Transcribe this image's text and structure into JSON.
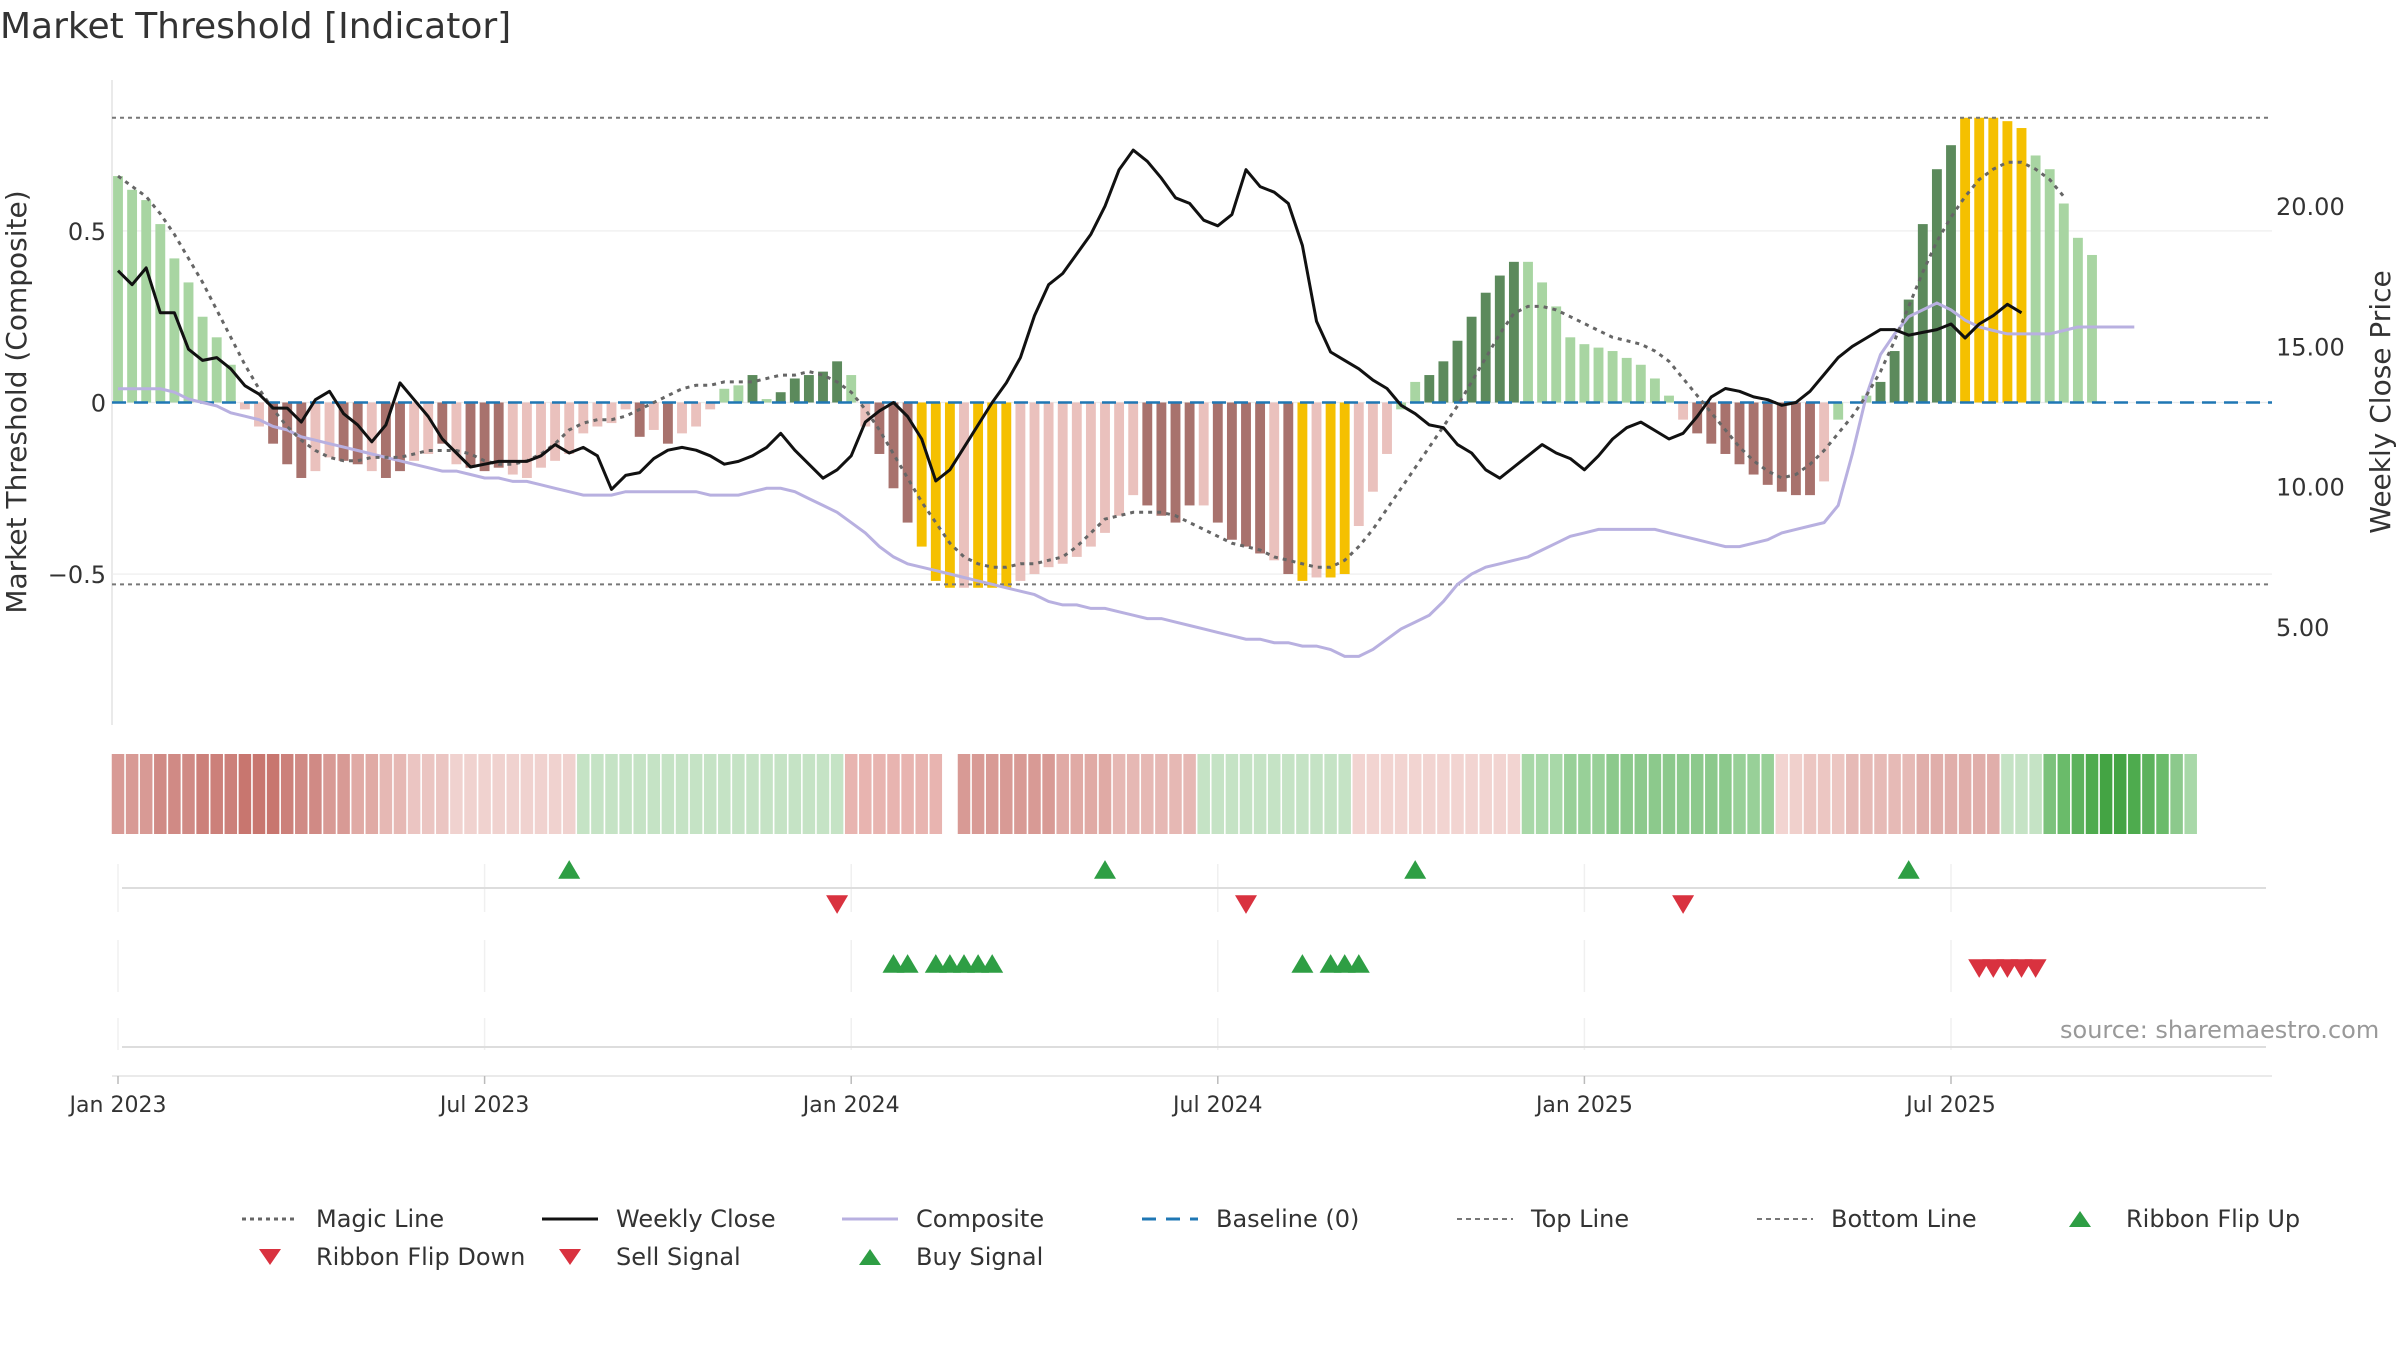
{
  "title": "Market Threshold [Indicator]",
  "source": "source: sharemaestro.com",
  "colors": {
    "pos_dark": "#5c8a5c",
    "pos_light": "#a8d5a2",
    "neg_dark": "#a8726d",
    "neg_light": "#eac1bd",
    "highlight": "#f5c000",
    "magic": "#666666",
    "close": "#111111",
    "composite": "#b8b0e0",
    "baseline": "#1f77b4",
    "threshold": "#777777",
    "buy": "#2e9e44",
    "sell": "#d9323f"
  },
  "chart_data": {
    "type": "bar",
    "left_axis": {
      "label": "Market Threshold (Composite)",
      "ticks": [
        "0.5",
        "0",
        "−0.5"
      ],
      "tick_values": [
        0.5,
        0,
        -0.5
      ],
      "ylim": [
        -0.94,
        0.94
      ]
    },
    "right_axis": {
      "label": "Weekly Close Price",
      "ticks": [
        "20.00",
        "15.00",
        "10.00",
        "5.00"
      ],
      "tick_values": [
        20,
        15,
        10,
        5
      ],
      "ylim": [
        1.5,
        24.5
      ]
    },
    "x_axis": {
      "ticks": [
        "Jan 2023",
        "Jul 2023",
        "Jan 2024",
        "Jul 2024",
        "Jan 2025",
        "Jul 2025"
      ],
      "tick_weeks": [
        0,
        26,
        52,
        78,
        104,
        130
      ],
      "range_weeks": [
        -1,
        140
      ]
    },
    "top_line": 0.83,
    "bottom_line": -0.53,
    "baseline": 0,
    "histogram_values": [
      0.66,
      0.62,
      0.59,
      0.52,
      0.42,
      0.35,
      0.25,
      0.19,
      0.11,
      -0.02,
      -0.07,
      -0.12,
      -0.18,
      -0.22,
      -0.2,
      -0.16,
      -0.17,
      -0.18,
      -0.2,
      -0.22,
      -0.2,
      -0.17,
      -0.15,
      -0.12,
      -0.18,
      -0.19,
      -0.2,
      -0.19,
      -0.21,
      -0.22,
      -0.19,
      -0.17,
      -0.15,
      -0.09,
      -0.07,
      -0.06,
      -0.02,
      -0.1,
      -0.08,
      -0.12,
      -0.09,
      -0.07,
      -0.02,
      0.04,
      0.05,
      0.08,
      0.01,
      0.03,
      0.07,
      0.08,
      0.09,
      0.12,
      0.08,
      -0.07,
      -0.15,
      -0.25,
      -0.35,
      -0.42,
      -0.52,
      -0.54,
      -0.54,
      -0.54,
      -0.54,
      -0.54,
      -0.52,
      -0.5,
      -0.48,
      -0.47,
      -0.45,
      -0.42,
      -0.38,
      -0.33,
      -0.27,
      -0.3,
      -0.33,
      -0.35,
      -0.3,
      -0.3,
      -0.35,
      -0.4,
      -0.42,
      -0.44,
      -0.46,
      -0.5,
      -0.52,
      -0.51,
      -0.51,
      -0.5,
      -0.36,
      -0.26,
      -0.15,
      -0.02,
      0.06,
      0.08,
      0.12,
      0.18,
      0.25,
      0.32,
      0.37,
      0.41,
      0.41,
      0.35,
      0.28,
      0.19,
      0.17,
      0.16,
      0.15,
      0.13,
      0.11,
      0.07,
      0.02,
      -0.05,
      -0.09,
      -0.12,
      -0.15,
      -0.18,
      -0.21,
      -0.24,
      -0.26,
      -0.27,
      -0.27,
      -0.23,
      -0.05,
      0.0,
      0.02,
      0.06,
      0.15,
      0.3,
      0.52,
      0.68,
      0.75,
      0.83,
      0.83,
      0.83,
      0.82,
      0.8,
      0.72,
      0.68,
      0.58,
      0.48,
      0.43
    ],
    "histogram_colors": [
      "pos_light",
      "pos_light",
      "pos_light",
      "pos_light",
      "pos_light",
      "pos_light",
      "pos_light",
      "pos_light",
      "pos_light",
      "neg_light",
      "neg_light",
      "neg_dark",
      "neg_dark",
      "neg_dark",
      "neg_light",
      "neg_light",
      "neg_dark",
      "neg_dark",
      "neg_light",
      "neg_dark",
      "neg_dark",
      "neg_light",
      "neg_light",
      "neg_dark",
      "neg_light",
      "neg_dark",
      "neg_dark",
      "neg_dark",
      "neg_light",
      "neg_light",
      "neg_light",
      "neg_light",
      "neg_light",
      "neg_light",
      "neg_light",
      "neg_light",
      "neg_light",
      "neg_dark",
      "neg_light",
      "neg_dark",
      "neg_light",
      "neg_light",
      "neg_light",
      "pos_light",
      "pos_light",
      "pos_dark",
      "pos_light",
      "pos_dark",
      "pos_dark",
      "pos_dark",
      "pos_dark",
      "pos_dark",
      "pos_light",
      "neg_light",
      "neg_dark",
      "neg_dark",
      "neg_dark",
      "highlight",
      "highlight",
      "highlight",
      "neg_light",
      "highlight",
      "highlight",
      "highlight",
      "neg_light",
      "neg_light",
      "neg_light",
      "neg_light",
      "neg_light",
      "neg_light",
      "neg_light",
      "neg_light",
      "neg_light",
      "neg_dark",
      "neg_dark",
      "neg_dark",
      "neg_dark",
      "neg_light",
      "neg_dark",
      "neg_dark",
      "neg_dark",
      "neg_dark",
      "neg_light",
      "neg_dark",
      "highlight",
      "neg_light",
      "highlight",
      "highlight",
      "neg_light",
      "neg_light",
      "neg_light",
      "pos_light",
      "pos_light",
      "pos_dark",
      "pos_dark",
      "pos_dark",
      "pos_dark",
      "pos_dark",
      "pos_dark",
      "pos_dark",
      "pos_light",
      "pos_light",
      "pos_light",
      "pos_light",
      "pos_light",
      "pos_light",
      "pos_light",
      "pos_light",
      "pos_light",
      "pos_light",
      "pos_light",
      "neg_light",
      "neg_dark",
      "neg_dark",
      "neg_dark",
      "neg_dark",
      "neg_dark",
      "neg_dark",
      "neg_dark",
      "neg_dark",
      "neg_dark",
      "neg_light",
      "pos_light",
      "pos_light",
      "pos_light",
      "pos_dark",
      "pos_dark",
      "pos_dark",
      "pos_dark",
      "pos_dark",
      "pos_dark",
      "highlight",
      "highlight",
      "highlight",
      "highlight",
      "highlight",
      "pos_light",
      "pos_light",
      "pos_light",
      "pos_light",
      "pos_light"
    ],
    "magic_line": [
      0.66,
      0.63,
      0.6,
      0.55,
      0.49,
      0.42,
      0.35,
      0.27,
      0.19,
      0.11,
      0.04,
      -0.02,
      -0.07,
      -0.11,
      -0.14,
      -0.16,
      -0.17,
      -0.17,
      -0.16,
      -0.16,
      -0.16,
      -0.15,
      -0.14,
      -0.14,
      -0.14,
      -0.15,
      -0.17,
      -0.18,
      -0.18,
      -0.17,
      -0.15,
      -0.12,
      -0.08,
      -0.06,
      -0.05,
      -0.05,
      -0.04,
      -0.02,
      0.0,
      0.02,
      0.04,
      0.05,
      0.05,
      0.06,
      0.06,
      0.06,
      0.07,
      0.08,
      0.08,
      0.09,
      0.08,
      0.06,
      0.03,
      -0.02,
      -0.08,
      -0.15,
      -0.22,
      -0.29,
      -0.35,
      -0.41,
      -0.45,
      -0.47,
      -0.48,
      -0.48,
      -0.47,
      -0.47,
      -0.46,
      -0.45,
      -0.42,
      -0.38,
      -0.34,
      -0.33,
      -0.32,
      -0.32,
      -0.32,
      -0.33,
      -0.35,
      -0.37,
      -0.39,
      -0.41,
      -0.42,
      -0.43,
      -0.45,
      -0.46,
      -0.47,
      -0.48,
      -0.48,
      -0.46,
      -0.42,
      -0.37,
      -0.31,
      -0.25,
      -0.19,
      -0.13,
      -0.07,
      -0.01,
      0.06,
      0.13,
      0.2,
      0.26,
      0.28,
      0.28,
      0.27,
      0.25,
      0.23,
      0.21,
      0.19,
      0.18,
      0.17,
      0.15,
      0.12,
      0.07,
      0.02,
      -0.03,
      -0.08,
      -0.13,
      -0.17,
      -0.2,
      -0.22,
      -0.21,
      -0.18,
      -0.14,
      -0.09,
      -0.04,
      0.02,
      0.09,
      0.18,
      0.28,
      0.38,
      0.47,
      0.54,
      0.6,
      0.65,
      0.68,
      0.7,
      0.7,
      0.68,
      0.65,
      0.6
    ],
    "composite": [
      0.04,
      0.04,
      0.04,
      0.04,
      0.03,
      0.01,
      0.0,
      -0.01,
      -0.03,
      -0.04,
      -0.05,
      -0.07,
      -0.08,
      -0.1,
      -0.11,
      -0.12,
      -0.13,
      -0.14,
      -0.15,
      -0.16,
      -0.17,
      -0.18,
      -0.19,
      -0.2,
      -0.2,
      -0.21,
      -0.22,
      -0.22,
      -0.23,
      -0.23,
      -0.24,
      -0.25,
      -0.26,
      -0.27,
      -0.27,
      -0.27,
      -0.26,
      -0.26,
      -0.26,
      -0.26,
      -0.26,
      -0.26,
      -0.27,
      -0.27,
      -0.27,
      -0.26,
      -0.25,
      -0.25,
      -0.26,
      -0.28,
      -0.3,
      -0.32,
      -0.35,
      -0.38,
      -0.42,
      -0.45,
      -0.47,
      -0.48,
      -0.49,
      -0.5,
      -0.51,
      -0.52,
      -0.53,
      -0.54,
      -0.55,
      -0.56,
      -0.58,
      -0.59,
      -0.59,
      -0.6,
      -0.6,
      -0.61,
      -0.62,
      -0.63,
      -0.63,
      -0.64,
      -0.65,
      -0.66,
      -0.67,
      -0.68,
      -0.69,
      -0.69,
      -0.7,
      -0.7,
      -0.71,
      -0.71,
      -0.72,
      -0.74,
      -0.74,
      -0.72,
      -0.69,
      -0.66,
      -0.64,
      -0.62,
      -0.58,
      -0.53,
      -0.5,
      -0.48,
      -0.47,
      -0.46,
      -0.45,
      -0.43,
      -0.41,
      -0.39,
      -0.38,
      -0.37,
      -0.37,
      -0.37,
      -0.37,
      -0.37,
      -0.38,
      -0.39,
      -0.4,
      -0.41,
      -0.42,
      -0.42,
      -0.41,
      -0.4,
      -0.38,
      -0.37,
      -0.36,
      -0.35,
      -0.3,
      -0.15,
      0.02,
      0.14,
      0.2,
      0.25,
      0.27,
      0.29,
      0.27,
      0.24,
      0.22,
      0.21,
      0.2,
      0.2,
      0.2,
      0.2,
      0.21,
      0.22,
      0.22,
      0.22,
      0.22,
      0.22
    ],
    "weekly_close": [
      17.7,
      17.2,
      17.8,
      16.2,
      16.2,
      14.9,
      14.5,
      14.6,
      14.2,
      13.6,
      13.3,
      12.8,
      12.8,
      12.3,
      13.1,
      13.4,
      12.6,
      12.2,
      11.6,
      12.2,
      13.7,
      13.1,
      12.5,
      11.7,
      11.2,
      10.7,
      10.8,
      10.9,
      10.9,
      10.9,
      11.1,
      11.5,
      11.2,
      11.4,
      11.1,
      9.9,
      10.4,
      10.5,
      11.0,
      11.3,
      11.4,
      11.3,
      11.1,
      10.8,
      10.9,
      11.1,
      11.4,
      11.9,
      11.3,
      10.8,
      10.3,
      10.6,
      11.1,
      12.3,
      12.7,
      13.0,
      12.5,
      11.7,
      10.2,
      10.6,
      11.4,
      12.2,
      13.0,
      13.7,
      14.6,
      16.1,
      17.2,
      17.6,
      18.3,
      19.0,
      20.0,
      21.3,
      22.0,
      21.6,
      21.0,
      20.3,
      20.1,
      19.5,
      19.3,
      19.7,
      21.3,
      20.7,
      20.5,
      20.1,
      18.6,
      15.9,
      14.8,
      14.5,
      14.2,
      13.8,
      13.5,
      12.9,
      12.6,
      12.2,
      12.1,
      11.5,
      11.2,
      10.6,
      10.3,
      10.7,
      11.1,
      11.5,
      11.2,
      11.0,
      10.6,
      11.1,
      11.7,
      12.1,
      12.3,
      12.0,
      11.7,
      11.9,
      12.5,
      13.2,
      13.5,
      13.4,
      13.2,
      13.1,
      12.9,
      13.0,
      13.4,
      14.0,
      14.6,
      15.0,
      15.3,
      15.6,
      15.6,
      15.4,
      15.5,
      15.6,
      15.8,
      15.3,
      15.8,
      16.1,
      16.5,
      16.2
    ],
    "ribbon_colors": [
      "#d89a95",
      "#d89a95",
      "#d89a95",
      "#d08a85",
      "#d08a85",
      "#d08a85",
      "#cc807a",
      "#cc807a",
      "#cc807a",
      "#c8766f",
      "#c8766f",
      "#c8766f",
      "#cc807a",
      "#d08a85",
      "#d08a85",
      "#d89a95",
      "#d89a95",
      "#e0aaa5",
      "#e0aaa5",
      "#e6b8b4",
      "#e6b8b4",
      "#ebc5c2",
      "#ebc5c2",
      "#ebc5c2",
      "#f0d2cf",
      "#f0d2cf",
      "#f0d2cf",
      "#f0d2cf",
      "#f0d2cf",
      "#f0d2cf",
      "#f0d2cf",
      "#f0d2cf",
      "#f0d2cf",
      "#c5e3c5",
      "#c5e3c5",
      "#c5e3c5",
      "#c5e3c5",
      "#c5e3c5",
      "#c5e3c5",
      "#c5e3c5",
      "#c5e3c5",
      "#c5e3c5",
      "#c5e3c5",
      "#c5e3c5",
      "#c5e3c5",
      "#c5e3c5",
      "#c5e3c5",
      "#c5e3c5",
      "#c5e3c5",
      "#c5e3c5",
      "#c5e3c5",
      "#c5e3c5",
      "#e8b4b0",
      "#e8b4b0",
      "#e8b4b0",
      "#e8b4b0",
      "#e8b4b0",
      "#e8b4b0",
      "#e8b4b0",
      "#ffffff",
      "#d89a95",
      "#d89a95",
      "#d89a95",
      "#d89a95",
      "#d89a95",
      "#d89a95",
      "#d89a95",
      "#e0aaa5",
      "#e0aaa5",
      "#e0aaa5",
      "#e0aaa5",
      "#e6b8b4",
      "#e6b8b4",
      "#e6b8b4",
      "#e6b8b4",
      "#e6b8b4",
      "#e6b8b4",
      "#c5e3c5",
      "#c5e3c5",
      "#c5e3c5",
      "#c5e3c5",
      "#c5e3c5",
      "#c5e3c5",
      "#c5e3c5",
      "#c5e3c5",
      "#c5e3c5",
      "#c5e3c5",
      "#c5e3c5",
      "#f2d4d1",
      "#f2d4d1",
      "#f2d4d1",
      "#f2d4d1",
      "#f2d4d1",
      "#f2d4d1",
      "#f2d4d1",
      "#f2d4d1",
      "#f2d4d1",
      "#f2d4d1",
      "#f2d4d1",
      "#f2d4d1",
      "#a8d8a8",
      "#a8d8a8",
      "#a8d8a8",
      "#98d098",
      "#98d098",
      "#98d098",
      "#8cc98c",
      "#8cc98c",
      "#8cc98c",
      "#8cc98c",
      "#8cc98c",
      "#8cc98c",
      "#8cc98c",
      "#8cc98c",
      "#8cc98c",
      "#98d098",
      "#98d098",
      "#98d098",
      "#f2d4d1",
      "#f0d0cc",
      "#ecc6c2",
      "#ecc6c2",
      "#ecc6c2",
      "#e6bab6",
      "#e6bab6",
      "#e6bab6",
      "#e6bab6",
      "#e6bab6",
      "#e0aeaa",
      "#e0aeaa",
      "#e0aeaa",
      "#e0aeaa",
      "#e0aeaa",
      "#e0aeaa",
      "#c5e3c5",
      "#c5e3c5",
      "#c5e3c5",
      "#7cc27c",
      "#6abb6a",
      "#5cb25c",
      "#4eab4e",
      "#44a444",
      "#44a444",
      "#4eab4e",
      "#5cb25c",
      "#6abb6a",
      "#8cc98c",
      "#a8d8a8"
    ],
    "ribbon_flip_up_weeks": [
      32,
      70,
      92,
      127
    ],
    "ribbon_flip_down_weeks": [
      51,
      80,
      111
    ],
    "buy_signal_weeks": [
      55,
      56,
      58,
      59,
      60,
      61,
      62,
      84,
      86,
      87,
      88
    ],
    "sell_signal_weeks": [
      132,
      133,
      134,
      135,
      136
    ],
    "legend": [
      {
        "label": "Magic Line",
        "style": "dotted",
        "color": "magic"
      },
      {
        "label": "Weekly Close",
        "style": "solid",
        "color": "close"
      },
      {
        "label": "Composite",
        "style": "solid",
        "color": "composite"
      },
      {
        "label": "Baseline (0)",
        "style": "dashed",
        "color": "baseline"
      },
      {
        "label": "Top Line",
        "style": "finedash",
        "color": "threshold"
      },
      {
        "label": "Bottom Line",
        "style": "finedash",
        "color": "threshold"
      },
      {
        "label": "Ribbon Flip Up",
        "style": "tri-up",
        "color": "buy"
      },
      {
        "label": "Ribbon Flip Down",
        "style": "tri-down",
        "color": "sell"
      },
      {
        "label": "Sell Signal",
        "style": "tri-down",
        "color": "sell"
      },
      {
        "label": "Buy Signal",
        "style": "tri-up",
        "color": "buy"
      }
    ]
  }
}
